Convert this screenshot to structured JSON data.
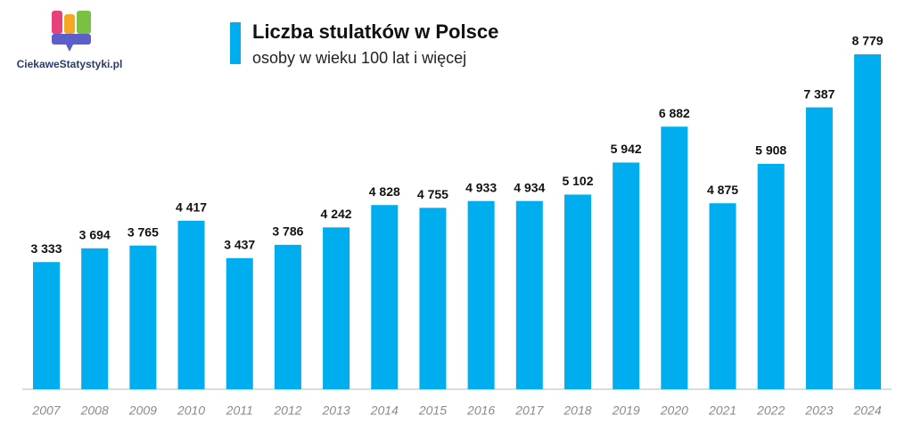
{
  "logo": "CiekaweStatystyki.pl",
  "chart_data": {
    "type": "bar",
    "title": "Liczba stulatków w Polsce",
    "subtitle": "osoby w wieku 100 lat i więcej",
    "categories": [
      "2007",
      "2008",
      "2009",
      "2010",
      "2011",
      "2012",
      "2013",
      "2014",
      "2015",
      "2016",
      "2017",
      "2018",
      "2019",
      "2020",
      "2021",
      "2022",
      "2023",
      "2024"
    ],
    "values": [
      3333,
      3694,
      3765,
      4417,
      3437,
      3786,
      4242,
      4828,
      4755,
      4933,
      4934,
      5102,
      5942,
      6882,
      4875,
      5908,
      7387,
      8779
    ],
    "value_labels": [
      "3 333",
      "3 694",
      "3 765",
      "4 417",
      "3 437",
      "3 786",
      "4 242",
      "4 828",
      "4 755",
      "4 933",
      "4 934",
      "5 102",
      "5 942",
      "6 882",
      "4 875",
      "5 908",
      "7 387",
      "8 779"
    ],
    "color": "#00aeef",
    "ylim": [
      0,
      9000
    ]
  }
}
